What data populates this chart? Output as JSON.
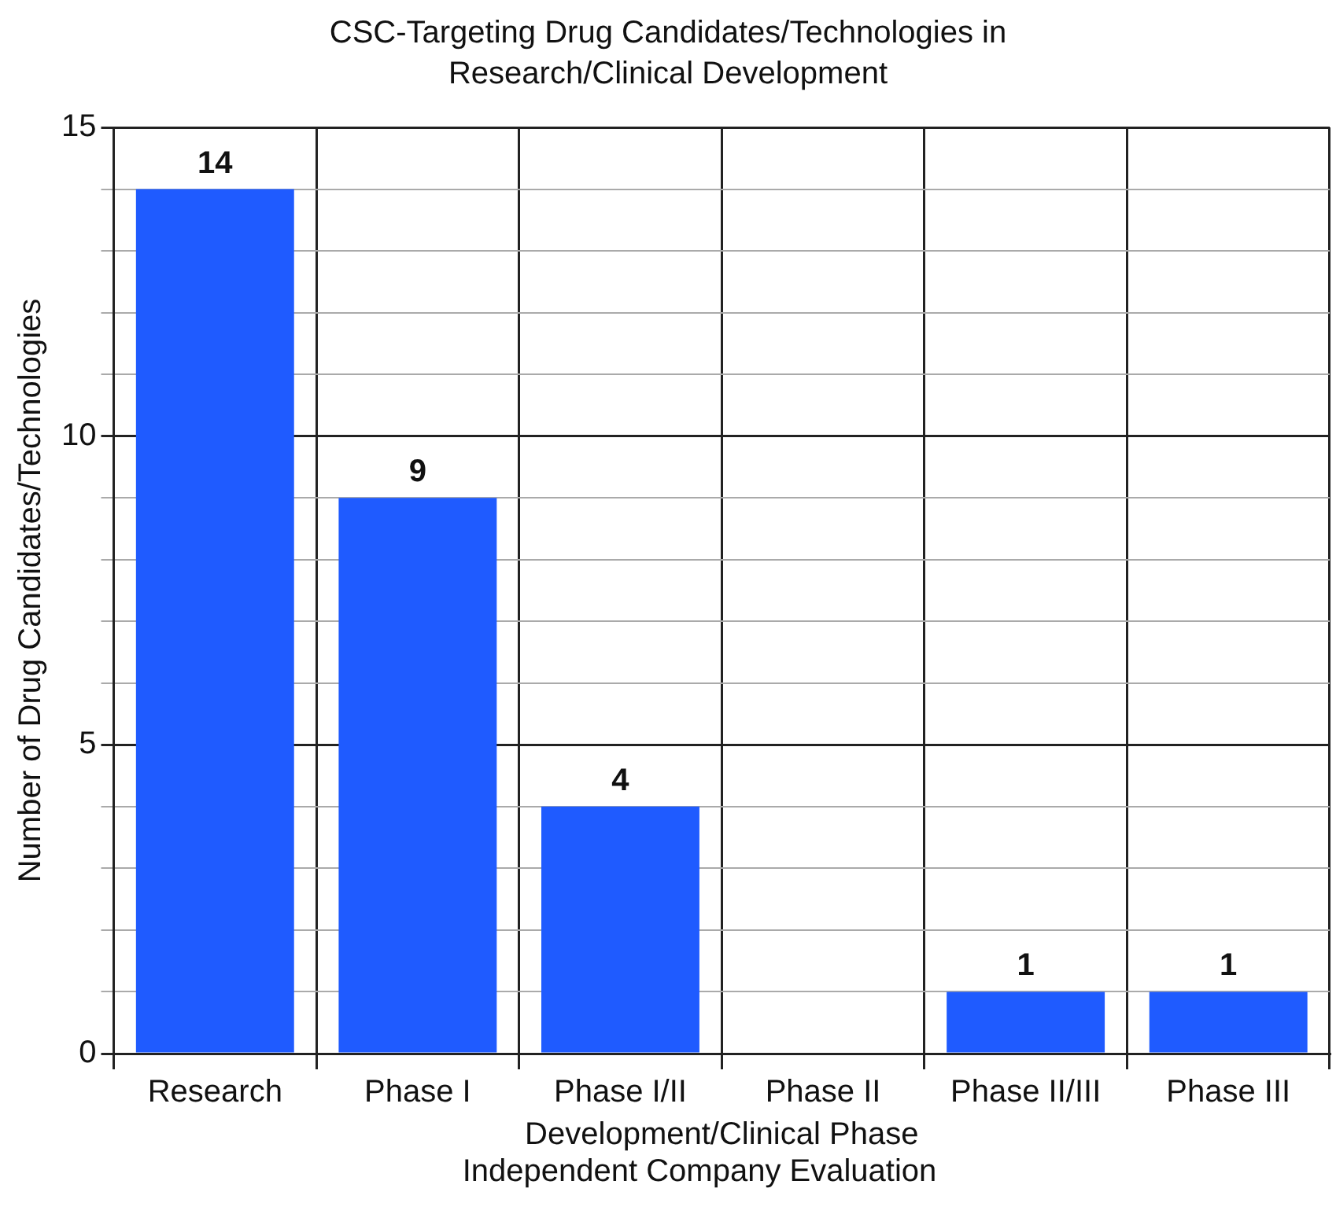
{
  "chart_data": {
    "type": "bar",
    "title": "CSC-Targeting Drug Candidates/Technologies in Research/Clinical Development",
    "xlabel": "Development/Clinical Phase",
    "ylabel": "Number of Drug Candidates/Technologies",
    "annotations": [
      "Independent Company Evaluation"
    ],
    "categories": [
      "Research",
      "Phase I",
      "Phase I/II",
      "Phase II",
      "Phase II/III",
      "Phase III"
    ],
    "values": [
      14,
      9,
      4,
      0,
      1,
      1
    ],
    "value_labels": [
      "14",
      "9",
      "4",
      null,
      "1",
      "1"
    ],
    "color": "#1f5bff",
    "ylim": [
      0,
      15
    ],
    "yticks": [
      0,
      {
        "value": 1,
        "label": null
      },
      {
        "value": 2,
        "label": null
      },
      {
        "value": 3,
        "label": null
      },
      {
        "value": 4,
        "label": null
      },
      5,
      {
        "value": 6,
        "label": null
      },
      {
        "value": 7,
        "label": null
      },
      {
        "value": 8,
        "label": null
      },
      {
        "value": 9,
        "label": null
      },
      10,
      {
        "value": 11,
        "label": null
      },
      {
        "value": 12,
        "label": null
      },
      {
        "value": 13,
        "label": null
      },
      {
        "value": 14,
        "label": null
      },
      15
    ],
    "grid": true
  }
}
